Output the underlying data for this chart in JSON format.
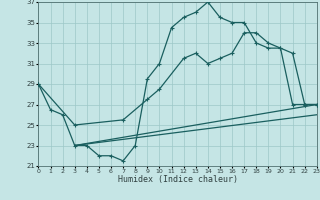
{
  "xlabel": "Humidex (Indice chaleur)",
  "xlim": [
    0,
    23
  ],
  "ylim": [
    21,
    37
  ],
  "xticks": [
    0,
    1,
    2,
    3,
    4,
    5,
    6,
    7,
    8,
    9,
    10,
    11,
    12,
    13,
    14,
    15,
    16,
    17,
    18,
    19,
    20,
    21,
    22,
    23
  ],
  "yticks": [
    21,
    23,
    25,
    27,
    29,
    31,
    33,
    35,
    37
  ],
  "bg_color": "#c5e5e5",
  "grid_color": "#9dc8c8",
  "line_color": "#1a5f5f",
  "curves": {
    "curve1": {
      "x": [
        0,
        1,
        2,
        3,
        4,
        5,
        6,
        7,
        8,
        9,
        10,
        11,
        12,
        13,
        14,
        15,
        16,
        17,
        18,
        19,
        20,
        21,
        22,
        23
      ],
      "y": [
        29,
        26.5,
        26,
        23,
        23,
        22,
        22,
        21.5,
        23,
        29.5,
        31,
        34.5,
        35.5,
        36,
        37,
        35.5,
        35,
        35,
        33,
        32.5,
        32.5,
        27,
        27,
        27
      ]
    },
    "curve2": {
      "x": [
        0,
        3,
        7,
        9,
        10,
        12,
        13,
        14,
        15,
        16,
        17,
        18,
        19,
        20,
        21,
        22,
        23
      ],
      "y": [
        29,
        25,
        25.5,
        27.5,
        28.5,
        31.5,
        32,
        31,
        31.5,
        32,
        34,
        34,
        33,
        32.5,
        32,
        27,
        27
      ]
    },
    "line1": {
      "x": [
        3,
        23
      ],
      "y": [
        23,
        27
      ]
    },
    "line2": {
      "x": [
        3,
        23
      ],
      "y": [
        23,
        26
      ]
    }
  }
}
